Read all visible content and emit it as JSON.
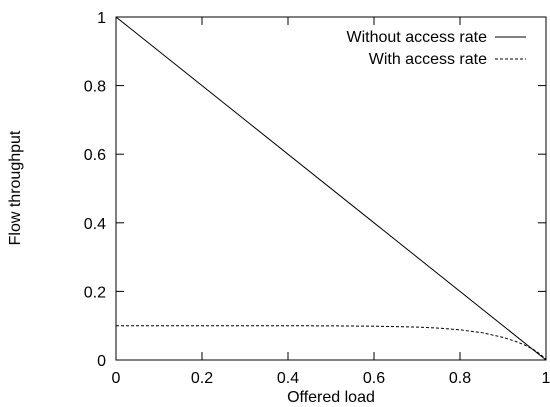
{
  "chart_data": {
    "type": "line",
    "title": "",
    "xlabel": "Offered load",
    "ylabel": "Flow throughput",
    "xlim": [
      0,
      1
    ],
    "ylim": [
      0,
      1
    ],
    "x_ticks": [
      "0",
      "0.2",
      "0.4",
      "0.6",
      "0.8",
      "1"
    ],
    "y_ticks": [
      "0",
      "0.2",
      "0.4",
      "0.6",
      "0.8",
      "1"
    ],
    "grid": false,
    "legend_position": "top-right",
    "series": [
      {
        "name": "Without access rate",
        "style": "solid",
        "color": "#000000",
        "x": [
          0,
          1
        ],
        "y": [
          1,
          0
        ]
      },
      {
        "name": "With access rate",
        "style": "dashed",
        "color": "#000000",
        "x": [
          0,
          0.1,
          0.2,
          0.3,
          0.4,
          0.5,
          0.6,
          0.7,
          0.75,
          0.8,
          0.85,
          0.9,
          0.93,
          0.95,
          0.97,
          0.98,
          0.99,
          1.0
        ],
        "y": [
          0.1,
          0.1,
          0.1,
          0.1,
          0.0999,
          0.0995,
          0.0985,
          0.096,
          0.093,
          0.088,
          0.08,
          0.066,
          0.054,
          0.044,
          0.031,
          0.023,
          0.013,
          0.002
        ]
      }
    ]
  }
}
